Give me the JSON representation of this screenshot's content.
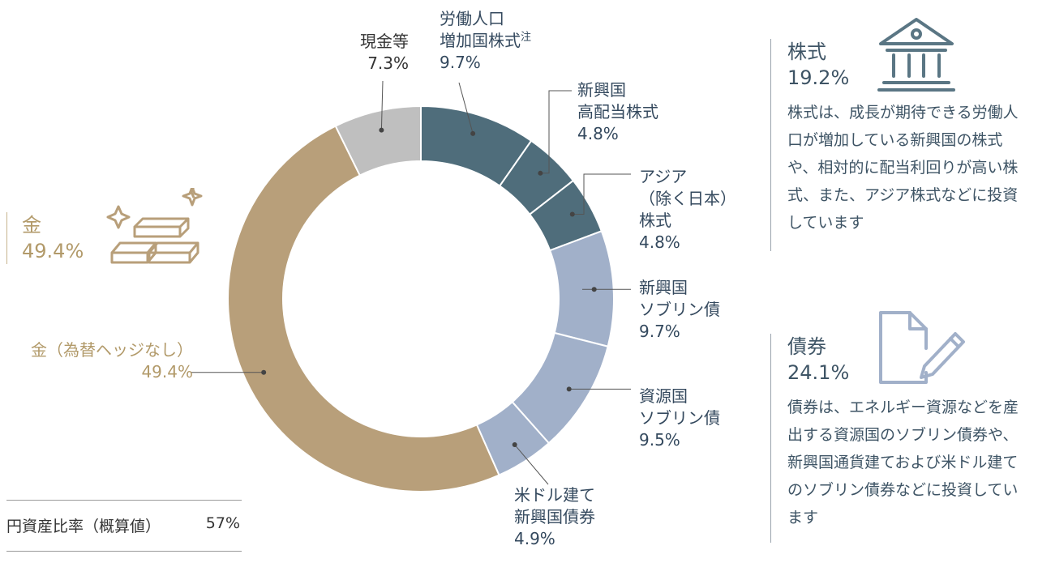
{
  "chart_data": {
    "type": "pie",
    "donut": true,
    "slices": [
      {
        "name": "労働人口増加国株式",
        "value": 9.7,
        "color": "#4f6d7b",
        "note": "注"
      },
      {
        "name": "新興国高配当株式",
        "value": 4.8,
        "color": "#4f6d7b"
      },
      {
        "name": "アジア（除く日本）株式",
        "value": 4.8,
        "color": "#4f6d7b"
      },
      {
        "name": "新興国ソブリン債",
        "value": 9.7,
        "color": "#a1b0c9"
      },
      {
        "name": "資源国ソブリン債",
        "value": 9.5,
        "color": "#a1b0c9"
      },
      {
        "name": "米ドル建て新興国債券",
        "value": 4.9,
        "color": "#a1b0c9"
      },
      {
        "name": "金（為替ヘッジなし）",
        "value": 49.4,
        "color": "#b89f7a"
      },
      {
        "name": "現金等",
        "value": 7.3,
        "color": "#bfbfbf"
      }
    ]
  },
  "labels": {
    "labor": {
      "l1": "労働人口",
      "l2": "増加国株式",
      "note": "注",
      "pct": "9.7%"
    },
    "emhd": {
      "l1": "新興国",
      "l2": "高配当株式",
      "pct": "4.8%"
    },
    "asia": {
      "l1": "アジア",
      "l2": "（除く日本）",
      "l3": "株式",
      "pct": "4.8%"
    },
    "emsov": {
      "l1": "新興国",
      "l2": "ソブリン債",
      "pct": "9.7%"
    },
    "ressov": {
      "l1": "資源国",
      "l2": "ソブリン債",
      "pct": "9.5%"
    },
    "usd": {
      "l1": "米ドル建て",
      "l2": "新興国債券",
      "pct": "4.9%"
    },
    "gold_slice": {
      "l1": "金（為替ヘッジなし）",
      "pct": "49.4%"
    },
    "cash": {
      "l1": "現金等",
      "pct": "7.3%"
    }
  },
  "gold_group": {
    "title": "金",
    "pct": "49.4%",
    "icon": "gold-bars-icon"
  },
  "stock_group": {
    "title": "株式",
    "pct": "19.2%",
    "icon": "bank-building-icon",
    "desc": "株式は、成長が期待できる労働人口が増加している新興国の株式や、相対的に配当利回りが高い株式、また、アジア株式などに投資しています"
  },
  "bond_group": {
    "title": "債券",
    "pct": "24.1%",
    "icon": "document-pen-icon",
    "desc": "債券は、エネルギー資源などを産出する資源国のソブリン債券や、新興国通貨建ておよび米ドル建てのソブリン債券などに投資しています"
  },
  "yen_ratio": {
    "label": "円資産比率（概算値）",
    "value": "57%"
  }
}
